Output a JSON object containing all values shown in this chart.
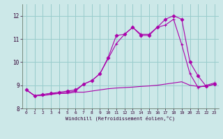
{
  "xlabel": "Windchill (Refroidissement éolien,°C)",
  "bg_color": "#cce8e8",
  "grid_color": "#99cccc",
  "line_color": "#aa00aa",
  "xlim": [
    -0.5,
    23.5
  ],
  "ylim": [
    8.0,
    12.5
  ],
  "xticks": [
    0,
    1,
    2,
    3,
    4,
    5,
    6,
    7,
    8,
    9,
    10,
    11,
    12,
    13,
    14,
    15,
    16,
    17,
    18,
    19,
    20,
    21,
    22,
    23
  ],
  "yticks": [
    8,
    9,
    10,
    11,
    12
  ],
  "series1_x": [
    0,
    1,
    2,
    3,
    4,
    5,
    6,
    7,
    8,
    9,
    10,
    11,
    12,
    13,
    14,
    15,
    16,
    17,
    18,
    19,
    20,
    21,
    22,
    23
  ],
  "series1_y": [
    8.8,
    8.55,
    8.55,
    8.6,
    8.65,
    8.65,
    8.7,
    8.7,
    8.75,
    8.8,
    8.85,
    8.88,
    8.9,
    8.92,
    8.95,
    8.97,
    9.0,
    9.05,
    9.1,
    9.15,
    9.0,
    8.95,
    8.95,
    9.05
  ],
  "series2_x": [
    0,
    1,
    2,
    3,
    4,
    5,
    6,
    7,
    8,
    9,
    10,
    11,
    12,
    13,
    14,
    15,
    16,
    17,
    18,
    19,
    20,
    21,
    22,
    23
  ],
  "series2_y": [
    8.8,
    8.55,
    8.6,
    8.65,
    8.65,
    8.7,
    8.75,
    9.05,
    9.2,
    9.5,
    10.15,
    10.8,
    11.2,
    11.5,
    11.2,
    11.2,
    11.5,
    11.6,
    11.85,
    10.75,
    9.5,
    8.9,
    9.0,
    9.1
  ],
  "series3_x": [
    0,
    1,
    2,
    3,
    4,
    5,
    6,
    7,
    8,
    9,
    10,
    11,
    12,
    13,
    14,
    15,
    16,
    17,
    18,
    19,
    20,
    21,
    22,
    23
  ],
  "series3_y": [
    8.8,
    8.55,
    8.6,
    8.65,
    8.7,
    8.75,
    8.8,
    9.05,
    9.2,
    9.5,
    10.2,
    11.15,
    11.2,
    11.5,
    11.15,
    11.15,
    11.5,
    11.85,
    12.0,
    11.85,
    10.0,
    9.4,
    8.95,
    9.05
  ]
}
